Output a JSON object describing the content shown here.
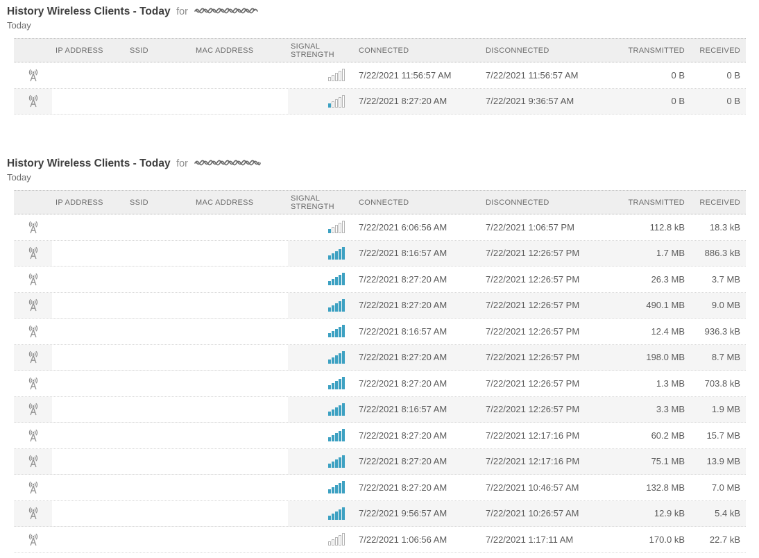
{
  "accent_colors": {
    "signal_filled": "#3da1c2",
    "signal_empty_border": "#b5b5b5",
    "header_bg": "#efefef",
    "stripe_bg": "#f5f5f5"
  },
  "tables": [
    {
      "title": "History Wireless Clients - Today",
      "title_connector": "for",
      "device_name_redacted": true,
      "subtitle": "Today",
      "columns": [
        {
          "key": "icon",
          "label": "",
          "align": "left"
        },
        {
          "key": "ip",
          "label": "IP ADDRESS",
          "align": "left"
        },
        {
          "key": "ssid",
          "label": "SSID",
          "align": "left"
        },
        {
          "key": "mac",
          "label": "MAC ADDRESS",
          "align": "left"
        },
        {
          "key": "signal",
          "label": "SIGNAL STRENGTH",
          "align": "left"
        },
        {
          "key": "connected",
          "label": "CONNECTED",
          "align": "left"
        },
        {
          "key": "disconnected",
          "label": "DISCONNECTED",
          "align": "left"
        },
        {
          "key": "transmitted",
          "label": "TRANSMITTED",
          "align": "right"
        },
        {
          "key": "received",
          "label": "RECEIVED",
          "align": "right"
        }
      ],
      "rows": [
        {
          "ip": "",
          "ssid": "",
          "mac": "",
          "signal_level": 0,
          "signal_max": 5,
          "connected": "7/22/2021 11:56:57 AM",
          "disconnected": "7/22/2021 11:56:57 AM",
          "transmitted": "0 B",
          "received": "0 B"
        },
        {
          "ip": "",
          "ssid": "",
          "mac": "",
          "signal_level": 1,
          "signal_max": 5,
          "connected": "7/22/2021 8:27:20 AM",
          "disconnected": "7/22/2021 9:36:57 AM",
          "transmitted": "0 B",
          "received": "0 B"
        }
      ]
    },
    {
      "title": "History Wireless Clients - Today",
      "title_connector": "for",
      "device_name_redacted": true,
      "subtitle": "Today",
      "columns": [
        {
          "key": "icon",
          "label": "",
          "align": "left"
        },
        {
          "key": "ip",
          "label": "IP ADDRESS",
          "align": "left"
        },
        {
          "key": "ssid",
          "label": "SSID",
          "align": "left"
        },
        {
          "key": "mac",
          "label": "MAC ADDRESS",
          "align": "left"
        },
        {
          "key": "signal",
          "label": "SIGNAL STRENGTH",
          "align": "left"
        },
        {
          "key": "connected",
          "label": "CONNECTED",
          "align": "left"
        },
        {
          "key": "disconnected",
          "label": "DISCONNECTED",
          "align": "left"
        },
        {
          "key": "transmitted",
          "label": "TRANSMITTED",
          "align": "right"
        },
        {
          "key": "received",
          "label": "RECEIVED",
          "align": "right"
        }
      ],
      "rows": [
        {
          "ip": "",
          "ssid": "",
          "mac": "",
          "signal_level": 1,
          "signal_max": 5,
          "connected": "7/22/2021 6:06:56 AM",
          "disconnected": "7/22/2021 1:06:57 PM",
          "transmitted": "112.8 kB",
          "received": "18.3 kB"
        },
        {
          "ip": "",
          "ssid": "",
          "mac": "",
          "signal_level": 5,
          "signal_max": 5,
          "connected": "7/22/2021 8:16:57 AM",
          "disconnected": "7/22/2021 12:26:57 PM",
          "transmitted": "1.7 MB",
          "received": "886.3 kB"
        },
        {
          "ip": "",
          "ssid": "",
          "mac": "",
          "signal_level": 5,
          "signal_max": 5,
          "connected": "7/22/2021 8:27:20 AM",
          "disconnected": "7/22/2021 12:26:57 PM",
          "transmitted": "26.3 MB",
          "received": "3.7 MB"
        },
        {
          "ip": "",
          "ssid": "",
          "mac": "",
          "signal_level": 5,
          "signal_max": 5,
          "connected": "7/22/2021 8:27:20 AM",
          "disconnected": "7/22/2021 12:26:57 PM",
          "transmitted": "490.1 MB",
          "received": "9.0 MB"
        },
        {
          "ip": "",
          "ssid": "",
          "mac": "",
          "signal_level": 5,
          "signal_max": 5,
          "connected": "7/22/2021 8:16:57 AM",
          "disconnected": "7/22/2021 12:26:57 PM",
          "transmitted": "12.4 MB",
          "received": "936.3 kB"
        },
        {
          "ip": "",
          "ssid": "",
          "mac": "",
          "signal_level": 5,
          "signal_max": 5,
          "connected": "7/22/2021 8:27:20 AM",
          "disconnected": "7/22/2021 12:26:57 PM",
          "transmitted": "198.0 MB",
          "received": "8.7 MB"
        },
        {
          "ip": "",
          "ssid": "",
          "mac": "",
          "signal_level": 5,
          "signal_max": 5,
          "connected": "7/22/2021 8:27:20 AM",
          "disconnected": "7/22/2021 12:26:57 PM",
          "transmitted": "1.3 MB",
          "received": "703.8 kB"
        },
        {
          "ip": "",
          "ssid": "",
          "mac": "",
          "signal_level": 5,
          "signal_max": 5,
          "connected": "7/22/2021 8:16:57 AM",
          "disconnected": "7/22/2021 12:26:57 PM",
          "transmitted": "3.3 MB",
          "received": "1.9 MB"
        },
        {
          "ip": "",
          "ssid": "",
          "mac": "",
          "signal_level": 5,
          "signal_max": 5,
          "connected": "7/22/2021 8:27:20 AM",
          "disconnected": "7/22/2021 12:17:16 PM",
          "transmitted": "60.2 MB",
          "received": "15.7 MB"
        },
        {
          "ip": "",
          "ssid": "",
          "mac": "",
          "signal_level": 5,
          "signal_max": 5,
          "connected": "7/22/2021 8:27:20 AM",
          "disconnected": "7/22/2021 12:17:16 PM",
          "transmitted": "75.1 MB",
          "received": "13.9 MB"
        },
        {
          "ip": "",
          "ssid": "",
          "mac": "",
          "signal_level": 5,
          "signal_max": 5,
          "connected": "7/22/2021 8:27:20 AM",
          "disconnected": "7/22/2021 10:46:57 AM",
          "transmitted": "132.8 MB",
          "received": "7.0 MB"
        },
        {
          "ip": "",
          "ssid": "",
          "mac": "",
          "signal_level": 5,
          "signal_max": 5,
          "connected": "7/22/2021 9:56:57 AM",
          "disconnected": "7/22/2021 10:26:57 AM",
          "transmitted": "12.9 kB",
          "received": "5.4 kB"
        },
        {
          "ip": "",
          "ssid": "",
          "mac": "",
          "signal_level": 0,
          "signal_max": 5,
          "connected": "7/22/2021 1:06:56 AM",
          "disconnected": "7/22/2021 1:17:11 AM",
          "transmitted": "170.0 kB",
          "received": "22.7 kB"
        }
      ]
    }
  ]
}
